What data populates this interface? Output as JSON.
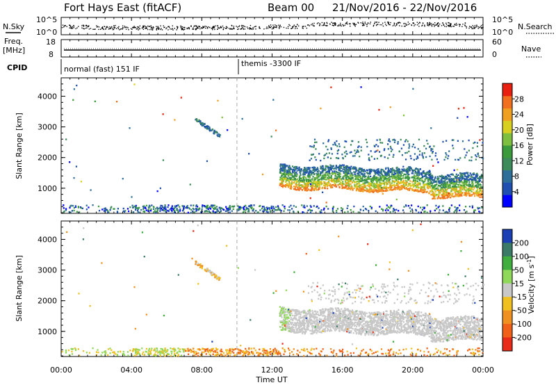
{
  "header": {
    "station": "Fort Hays East (fitACF)",
    "beam": "Beam 00",
    "date_range": "21/Nov/2016 - 22/Nov/2016"
  },
  "summary_panels": {
    "nsky_label": "N.Sky",
    "nsky_ticks": [
      "10^5",
      "10^0"
    ],
    "nsearch_label": "N.Search",
    "nsearch_ticks": [
      "10^5",
      "10^0"
    ],
    "freq_label": "Freq.",
    "freq_unit": "[MHz]",
    "freq_ticks": [
      "18",
      "8"
    ],
    "nave_label": "Nave",
    "nave_ticks": [
      "60",
      "0"
    ],
    "cpid_label": "CPID",
    "cpid_modes": [
      {
        "name": "normal (fast) 151 IF",
        "start_hour": 0
      },
      {
        "name": "themis -3300 IF",
        "start_hour": 10
      }
    ]
  },
  "chart_data": [
    {
      "type": "heatmap",
      "name": "power",
      "ylabel": "Slant Range [km]",
      "ylim": [
        180,
        4600
      ],
      "xlim_hours": [
        0,
        24
      ],
      "yticks": [
        1000,
        2000,
        3000,
        4000
      ],
      "colorbar": {
        "label": "Power [dB]",
        "range": [
          0,
          32
        ],
        "ticks": [
          4,
          8,
          12,
          16,
          20,
          24,
          28
        ],
        "colors": [
          "#0000ff",
          "#1f4fb0",
          "#2e6f9a",
          "#3d8a5a",
          "#3a9a3c",
          "#7fbf3f",
          "#d8d020",
          "#f0a020",
          "#f07020",
          "#e82010"
        ]
      },
      "features": [
        {
          "kind": "near-range band",
          "hours": [
            0,
            24
          ],
          "range_km": [
            200,
            450
          ]
        },
        {
          "kind": "streak",
          "hours": [
            7.6,
            9
          ],
          "range_km": [
            2700,
            3300
          ]
        },
        {
          "kind": "main echo band",
          "hours": [
            12.4,
            23.9
          ],
          "range_km": [
            900,
            1900
          ]
        }
      ]
    },
    {
      "type": "heatmap",
      "name": "velocity",
      "ylabel": "Slant Range [km]",
      "ylim": [
        180,
        4600
      ],
      "xlim_hours": [
        0,
        24
      ],
      "yticks": [
        1000,
        2000,
        3000,
        4000
      ],
      "colorbar": {
        "label": "Velocity [m s^-1]",
        "tick_labels": [
          "200",
          "100",
          "50",
          "15",
          "-15",
          "-50",
          "-100",
          "-200"
        ],
        "colors": [
          "#1c3fb4",
          "#3a7a66",
          "#3fae3f",
          "#8fd85a",
          "#c8c8c8",
          "#f0c020",
          "#f09020",
          "#f06018",
          "#e82a18"
        ]
      }
    }
  ],
  "xaxis": {
    "label": "Time UT",
    "tick_labels": [
      "00:00",
      "04:00",
      "08:00",
      "12:00",
      "16:00",
      "20:00",
      "00:00"
    ]
  },
  "marker_hour": 10
}
